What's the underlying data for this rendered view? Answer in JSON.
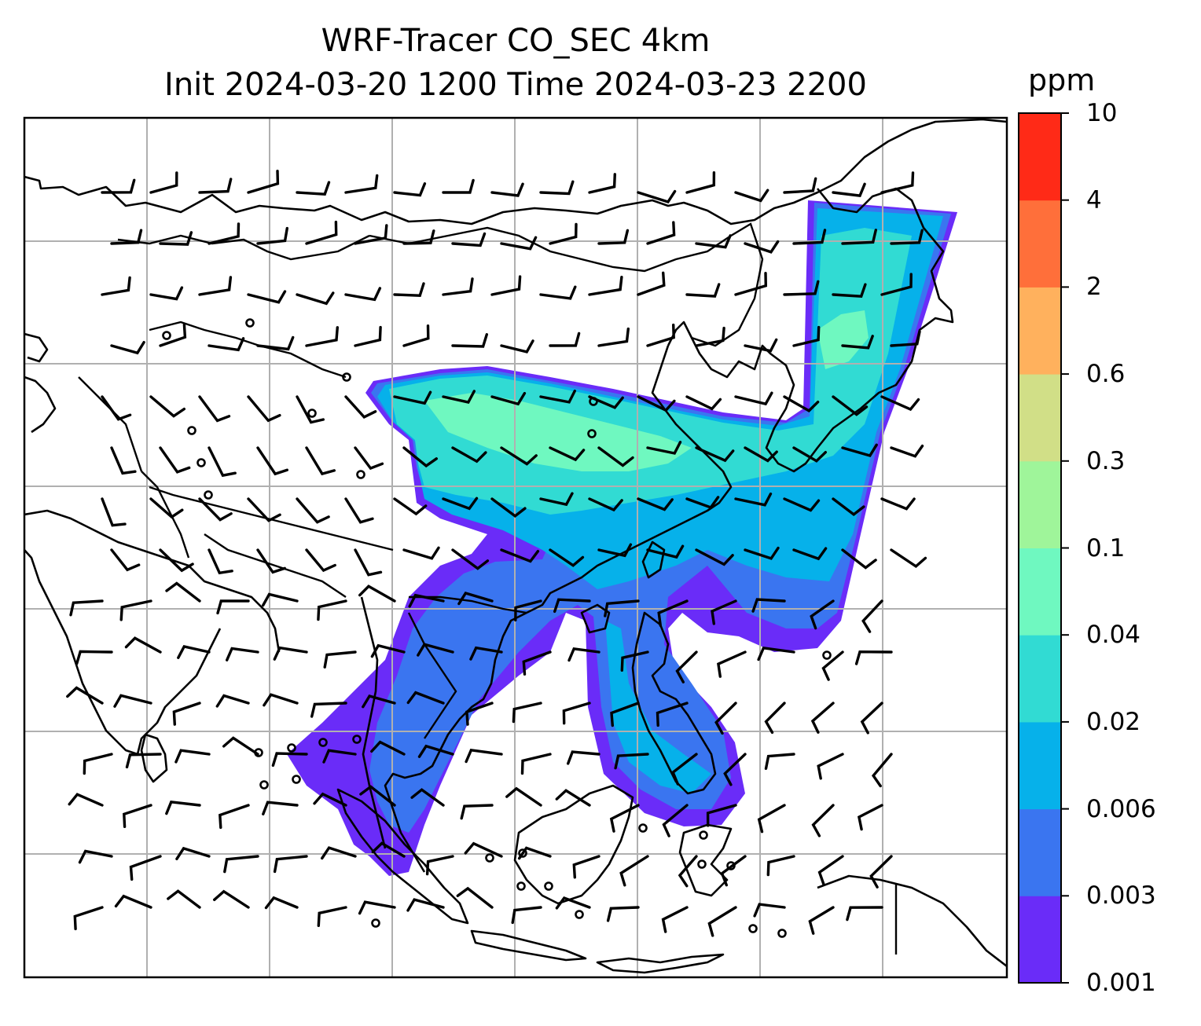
{
  "title": {
    "line1": "WRF-Tracer CO_SEC 4km",
    "line2": "Init 2024-03-20 1200 Time 2024-03-23 2200"
  },
  "colorbar": {
    "units": "ppm",
    "levels": [
      "0.001",
      "0.003",
      "0.006",
      "0.02",
      "0.04",
      "0.1",
      "0.3",
      "0.6",
      "2",
      "4",
      "10"
    ],
    "colors": [
      "#6a2cf8",
      "#3a75f0",
      "#06b1ea",
      "#31dbd3",
      "#6ff8c0",
      "#9ff59a",
      "#d1df87",
      "#ffb15d",
      "#ff6f3a",
      "#ff2a17"
    ]
  },
  "map": {
    "field": "CO_SEC tracer concentration",
    "gridlines": true,
    "overlays": [
      "coastlines",
      "country borders",
      "wind barbs",
      "calm-wind circles"
    ]
  }
}
